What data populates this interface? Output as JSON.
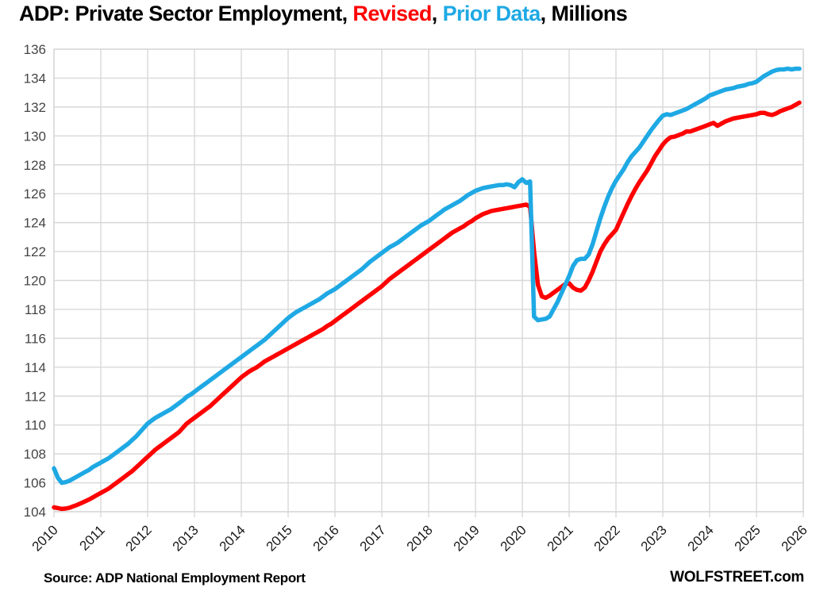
{
  "title": {
    "part1": "ADP: Private Sector Employment,  ",
    "part2": "Revised",
    "part3": ", ",
    "part4": "Prior Data",
    "part5": ", Millions"
  },
  "footer": {
    "source": "Source: ADP National Employment Report",
    "site": "WOLFSTREET.com"
  },
  "colors": {
    "revised": "#FF0000",
    "prior": "#1FA9E4",
    "grid": "#D8D8D8",
    "tick_label": "#454545",
    "title_text": "#000000",
    "background": "#FFFFFF"
  },
  "chart_data": {
    "type": "line",
    "title": "ADP: Private Sector Employment, Revised, Prior Data, Millions",
    "xlabel": "",
    "ylabel": "",
    "grid": "on",
    "legend_position": "in-title",
    "x_axis": {
      "tick_labels": [
        "2010",
        "2011",
        "2012",
        "2013",
        "2014",
        "2015",
        "2016",
        "2017",
        "2018",
        "2019",
        "2020",
        "2021",
        "2022",
        "2023",
        "2024",
        "2025",
        "2026"
      ],
      "tick_rotation_deg": -45,
      "start_year": 2010,
      "points_per_year": 12
    },
    "y_axis": {
      "min": 104,
      "max": 136,
      "tick_step": 2,
      "tick_labels": [
        "104",
        "106",
        "108",
        "110",
        "112",
        "114",
        "116",
        "118",
        "120",
        "122",
        "124",
        "126",
        "128",
        "130",
        "132",
        "134",
        "136"
      ]
    },
    "series": [
      {
        "name": "Revised",
        "color_key": "revised",
        "stroke_width": 5.5,
        "monthly_values_from_jan_2010": [
          104.3,
          104.25,
          104.2,
          104.22,
          104.28,
          104.38,
          104.48,
          104.6,
          104.72,
          104.85,
          105.0,
          105.15,
          105.3,
          105.45,
          105.6,
          105.8,
          106.0,
          106.2,
          106.4,
          106.6,
          106.8,
          107.05,
          107.3,
          107.55,
          107.8,
          108.05,
          108.3,
          108.5,
          108.7,
          108.9,
          109.1,
          109.3,
          109.5,
          109.8,
          110.1,
          110.3,
          110.5,
          110.7,
          110.9,
          111.1,
          111.3,
          111.55,
          111.8,
          112.05,
          112.3,
          112.55,
          112.8,
          113.05,
          113.3,
          113.5,
          113.7,
          113.85,
          114.0,
          114.2,
          114.4,
          114.55,
          114.7,
          114.85,
          115.0,
          115.15,
          115.3,
          115.45,
          115.6,
          115.75,
          115.9,
          116.05,
          116.2,
          116.35,
          116.5,
          116.65,
          116.85,
          117.0,
          117.2,
          117.4,
          117.6,
          117.8,
          118.0,
          118.2,
          118.4,
          118.6,
          118.8,
          119.0,
          119.2,
          119.4,
          119.6,
          119.85,
          120.1,
          120.3,
          120.5,
          120.7,
          120.9,
          121.1,
          121.3,
          121.5,
          121.7,
          121.9,
          122.1,
          122.3,
          122.5,
          122.7,
          122.9,
          123.1,
          123.3,
          123.45,
          123.6,
          123.75,
          123.95,
          124.1,
          124.3,
          124.45,
          124.6,
          124.7,
          124.8,
          124.85,
          124.9,
          124.95,
          125.0,
          125.05,
          125.1,
          125.15,
          125.2,
          125.25,
          125.1,
          122.0,
          119.7,
          118.9,
          118.8,
          118.95,
          119.15,
          119.35,
          119.55,
          119.75,
          119.8,
          119.5,
          119.35,
          119.3,
          119.5,
          120.0,
          120.6,
          121.3,
          122.0,
          122.5,
          122.9,
          123.2,
          123.5,
          124.1,
          124.7,
          125.3,
          125.85,
          126.35,
          126.8,
          127.2,
          127.6,
          128.1,
          128.6,
          129.0,
          129.4,
          129.7,
          129.9,
          129.95,
          130.05,
          130.15,
          130.3,
          130.3,
          130.4,
          130.5,
          130.6,
          130.7,
          130.8,
          130.9,
          130.7,
          130.85,
          131.0,
          131.1,
          131.2,
          131.25,
          131.3,
          131.35,
          131.4,
          131.45,
          131.5,
          131.6,
          131.6,
          131.5,
          131.45,
          131.55,
          131.7,
          131.8,
          131.9,
          132.0,
          132.15,
          132.3
        ]
      },
      {
        "name": "Prior Data",
        "color_key": "prior",
        "stroke_width": 5.5,
        "monthly_values_from_jan_2010": [
          107.0,
          106.35,
          106.0,
          106.05,
          106.15,
          106.3,
          106.45,
          106.6,
          106.75,
          106.9,
          107.1,
          107.25,
          107.4,
          107.55,
          107.7,
          107.9,
          108.1,
          108.3,
          108.5,
          108.7,
          108.95,
          109.2,
          109.5,
          109.8,
          110.1,
          110.3,
          110.5,
          110.65,
          110.8,
          110.95,
          111.1,
          111.3,
          111.5,
          111.7,
          111.95,
          112.1,
          112.3,
          112.5,
          112.7,
          112.9,
          113.1,
          113.3,
          113.5,
          113.7,
          113.9,
          114.1,
          114.3,
          114.5,
          114.7,
          114.9,
          115.1,
          115.3,
          115.5,
          115.7,
          115.9,
          116.15,
          116.4,
          116.65,
          116.9,
          117.15,
          117.4,
          117.6,
          117.8,
          117.95,
          118.1,
          118.25,
          118.4,
          118.55,
          118.7,
          118.9,
          119.1,
          119.25,
          119.4,
          119.6,
          119.8,
          120.0,
          120.2,
          120.4,
          120.6,
          120.8,
          121.05,
          121.3,
          121.5,
          121.7,
          121.9,
          122.1,
          122.3,
          122.45,
          122.6,
          122.8,
          123.0,
          123.2,
          123.4,
          123.6,
          123.8,
          123.95,
          124.1,
          124.3,
          124.5,
          124.7,
          124.9,
          125.05,
          125.2,
          125.35,
          125.5,
          125.7,
          125.9,
          126.05,
          126.2,
          126.3,
          126.4,
          126.45,
          126.5,
          126.55,
          126.6,
          126.6,
          126.65,
          126.6,
          126.45,
          126.8,
          127.0,
          126.75,
          126.85,
          117.5,
          117.25,
          117.3,
          117.35,
          117.5,
          118.0,
          118.5,
          119.1,
          119.7,
          120.3,
          121.0,
          121.4,
          121.5,
          121.5,
          121.8,
          122.5,
          123.4,
          124.3,
          125.1,
          125.8,
          126.4,
          126.9,
          127.3,
          127.7,
          128.2,
          128.6,
          128.9,
          129.2,
          129.6,
          130.0,
          130.4,
          130.75,
          131.1,
          131.4,
          131.5,
          131.45,
          131.55,
          131.65,
          131.75,
          131.85,
          132.0,
          132.15,
          132.3,
          132.45,
          132.6,
          132.8,
          132.9,
          133.0,
          133.1,
          133.2,
          133.25,
          133.3,
          133.4,
          133.45,
          133.5,
          133.6,
          133.65,
          133.75,
          133.95,
          134.15,
          134.3,
          134.45,
          134.55,
          134.6,
          134.6,
          134.65,
          134.6,
          134.65,
          134.65
        ]
      }
    ]
  }
}
